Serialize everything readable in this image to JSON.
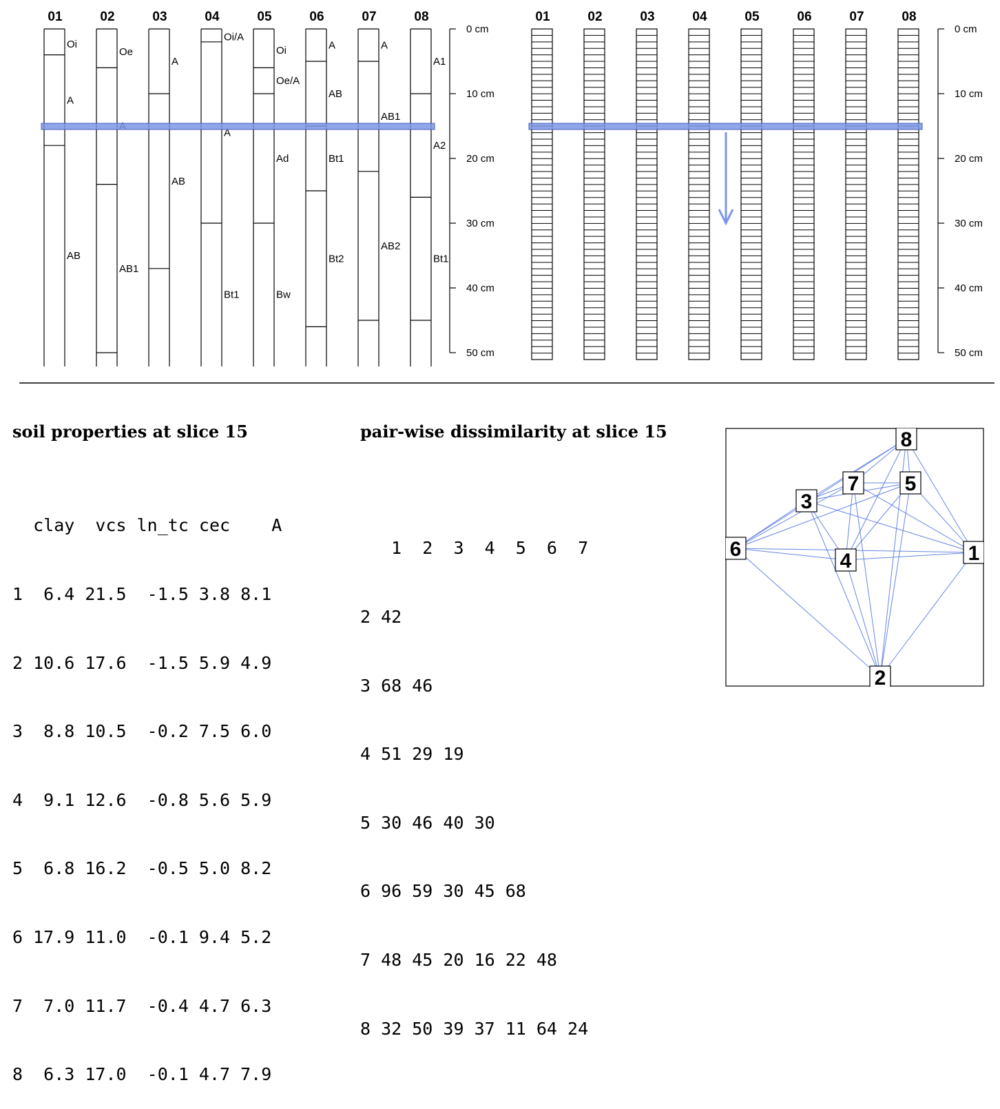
{
  "top_left_panel": {
    "profile_ids": [
      "01",
      "02",
      "03",
      "04",
      "05",
      "06",
      "07",
      "08"
    ],
    "profiles": [
      {
        "id": "01",
        "horizons": [
          {
            "name": "Oi",
            "top": 0,
            "bottom": 4
          },
          {
            "name": "A",
            "top": 4,
            "bottom": 18
          },
          {
            "name": "AB",
            "top": 18,
            "bottom": 52
          }
        ]
      },
      {
        "id": "02",
        "horizons": [
          {
            "name": "Oe",
            "top": 0,
            "bottom": 6
          },
          {
            "name": "A",
            "top": 6,
            "bottom": 24
          },
          {
            "name": "AB1",
            "top": 24,
            "bottom": 50
          },
          {
            "name": "",
            "top": 50,
            "bottom": 52
          }
        ]
      },
      {
        "id": "03",
        "horizons": [
          {
            "name": "A",
            "top": 0,
            "bottom": 10
          },
          {
            "name": "AB",
            "top": 10,
            "bottom": 37
          },
          {
            "name": "",
            "top": 37,
            "bottom": 52
          }
        ]
      },
      {
        "id": "04",
        "horizons": [
          {
            "name": "Oi/A",
            "top": 0,
            "bottom": 2
          },
          {
            "name": "A",
            "top": 2,
            "bottom": 30
          },
          {
            "name": "Bt1",
            "top": 30,
            "bottom": 52
          }
        ]
      },
      {
        "id": "05",
        "horizons": [
          {
            "name": "Oi",
            "top": 0,
            "bottom": 6
          },
          {
            "name": "Oe/A",
            "top": 6,
            "bottom": 10
          },
          {
            "name": "Ad",
            "top": 10,
            "bottom": 30
          },
          {
            "name": "Bw",
            "top": 30,
            "bottom": 52
          }
        ]
      },
      {
        "id": "06",
        "horizons": [
          {
            "name": "A",
            "top": 0,
            "bottom": 5
          },
          {
            "name": "AB",
            "top": 5,
            "bottom": 15
          },
          {
            "name": "Bt1",
            "top": 15,
            "bottom": 25
          },
          {
            "name": "Bt2",
            "top": 25,
            "bottom": 46
          },
          {
            "name": "",
            "top": 46,
            "bottom": 52
          }
        ]
      },
      {
        "id": "07",
        "horizons": [
          {
            "name": "A",
            "top": 0,
            "bottom": 5
          },
          {
            "name": "AB1",
            "top": 5,
            "bottom": 22
          },
          {
            "name": "AB2",
            "top": 22,
            "bottom": 45
          },
          {
            "name": "",
            "top": 45,
            "bottom": 52
          }
        ]
      },
      {
        "id": "08",
        "horizons": [
          {
            "name": "A1",
            "top": 0,
            "bottom": 10
          },
          {
            "name": "A2",
            "top": 10,
            "bottom": 26
          },
          {
            "name": "Bt1",
            "top": 26,
            "bottom": 45
          },
          {
            "name": "",
            "top": 45,
            "bottom": 52
          }
        ]
      }
    ],
    "depth_ticks": [
      "0 cm",
      "10 cm",
      "20 cm",
      "30 cm",
      "40 cm",
      "50 cm"
    ]
  },
  "top_right_panel": {
    "profile_ids": [
      "01",
      "02",
      "03",
      "04",
      "05",
      "06",
      "07",
      "08"
    ],
    "slice_count": 51,
    "depth_ticks": [
      "0 cm",
      "10 cm",
      "20 cm",
      "30 cm",
      "40 cm",
      "50 cm"
    ]
  },
  "highlight_slice_depth": 15,
  "colors": {
    "highlight": "#7b96e8",
    "line": "#000000",
    "network_edge": "#5578e0"
  },
  "soil_properties": {
    "title": "soil properties at slice 15",
    "header": "  clay  vcs ln_tc cec    A",
    "rows": [
      "1  6.4 21.5  -1.5 3.8 8.1",
      "2 10.6 17.6  -1.5 5.9 4.9",
      "3  8.8 10.5  -0.2 7.5 6.0",
      "4  9.1 12.6  -0.8 5.6 5.9",
      "5  6.8 16.2  -0.5 5.0 8.2",
      "6 17.9 11.0  -0.1 9.4 5.2",
      "7  7.0 11.7  -0.4 4.7 6.3",
      "8  6.3 17.0  -0.1 4.7 7.9"
    ]
  },
  "dissimilarity": {
    "title": "pair-wise dissimilarity at slice 15",
    "header": "   1  2  3  4  5  6  7",
    "rows": [
      "2 42",
      "3 68 46",
      "4 51 29 19",
      "5 30 46 40 30",
      "6 96 59 30 45 68",
      "7 48 45 20 16 22 48",
      "8 32 50 39 37 11 64 24"
    ]
  },
  "network": {
    "node_labels": [
      "1",
      "2",
      "3",
      "4",
      "5",
      "6",
      "7",
      "8"
    ]
  }
}
